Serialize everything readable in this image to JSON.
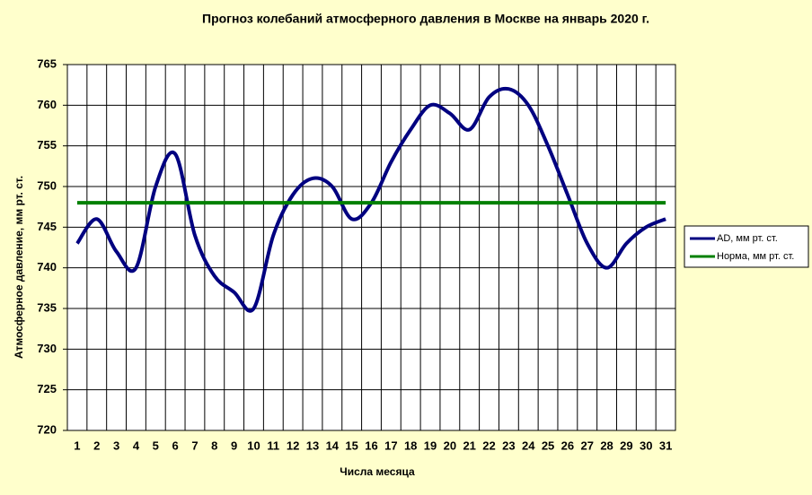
{
  "chart_data": {
    "type": "line",
    "title": "Прогноз колебаний атмосферного давления в Москве на январь 2020 г.",
    "xlabel": "Числа месяца",
    "ylabel": "Атмосферное давление, мм рт. ст.",
    "categories": [
      "1",
      "2",
      "3",
      "4",
      "5",
      "6",
      "7",
      "8",
      "9",
      "10",
      "11",
      "12",
      "13",
      "14",
      "15",
      "16",
      "17",
      "18",
      "19",
      "20",
      "21",
      "22",
      "23",
      "24",
      "25",
      "26",
      "27",
      "28",
      "29",
      "30",
      "31"
    ],
    "series": [
      {
        "name": "AD, мм рт. ст.",
        "color": "#000080",
        "values": [
          743,
          746,
          742,
          740,
          750,
          754,
          744,
          739,
          737,
          735,
          744,
          749,
          751,
          750,
          746,
          748,
          753,
          757,
          760,
          759,
          757,
          761,
          762,
          760,
          755,
          749,
          743,
          740,
          743,
          745,
          746
        ]
      },
      {
        "name": "Норма, мм рт. ст.",
        "color": "#008000",
        "values": [
          748,
          748,
          748,
          748,
          748,
          748,
          748,
          748,
          748,
          748,
          748,
          748,
          748,
          748,
          748,
          748,
          748,
          748,
          748,
          748,
          748,
          748,
          748,
          748,
          748,
          748,
          748,
          748,
          748,
          748,
          748
        ]
      }
    ],
    "ylim": [
      720,
      765
    ],
    "yticks": [
      720,
      725,
      730,
      735,
      740,
      745,
      750,
      755,
      760,
      765
    ],
    "grid": true
  }
}
